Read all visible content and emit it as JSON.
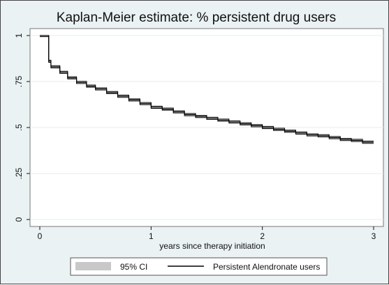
{
  "chart_data": {
    "type": "line",
    "title": "Kaplan-Meier estimate: % persistent drug users",
    "xlabel": "years since therapy initiation",
    "ylabel": "",
    "xlim": [
      0,
      3
    ],
    "ylim": [
      0,
      1
    ],
    "x_ticks": [
      {
        "value": 0,
        "label": "0"
      },
      {
        "value": 1,
        "label": "1"
      },
      {
        "value": 2,
        "label": "2"
      },
      {
        "value": 3,
        "label": "3"
      }
    ],
    "y_ticks": [
      {
        "value": 0,
        "label": "0"
      },
      {
        "value": 0.25,
        "label": ".25"
      },
      {
        "value": 0.5,
        "label": ".5"
      },
      {
        "value": 0.75,
        "label": ".75"
      },
      {
        "value": 1,
        "label": "1"
      }
    ],
    "grid": "horizontal",
    "legend_position": "bottom",
    "series": [
      {
        "name": "Persistent Alendronate users",
        "style": "step",
        "color": "#000000",
        "x": [
          0,
          0.08,
          0.08,
          0.1,
          0.18,
          0.25,
          0.33,
          0.42,
          0.5,
          0.6,
          0.7,
          0.8,
          0.9,
          1.0,
          1.1,
          1.2,
          1.3,
          1.4,
          1.5,
          1.6,
          1.7,
          1.8,
          1.9,
          2.0,
          2.1,
          2.2,
          2.3,
          2.4,
          2.5,
          2.6,
          2.7,
          2.8,
          2.9,
          3.0
        ],
        "values": [
          1.0,
          1.0,
          0.86,
          0.83,
          0.8,
          0.77,
          0.745,
          0.725,
          0.71,
          0.69,
          0.67,
          0.65,
          0.63,
          0.61,
          0.6,
          0.585,
          0.57,
          0.56,
          0.55,
          0.54,
          0.53,
          0.52,
          0.51,
          0.5,
          0.49,
          0.48,
          0.47,
          0.46,
          0.455,
          0.445,
          0.435,
          0.43,
          0.42,
          0.42
        ]
      }
    ],
    "confidence_band": {
      "name": "95% CI",
      "color": "#c8c8c8",
      "half_width": 0.006
    }
  }
}
